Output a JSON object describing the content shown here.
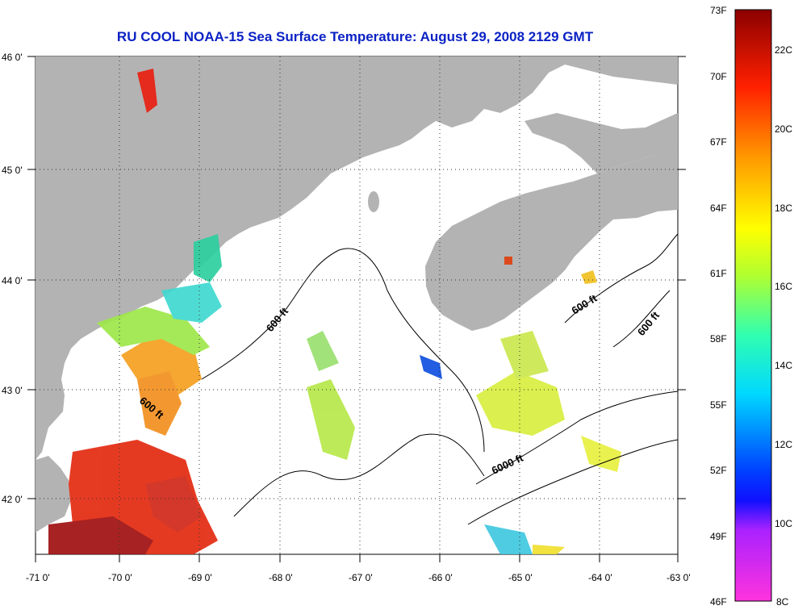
{
  "title": "RU COOL  NOAA-15  Sea Surface Temperature:  August 29, 2008 2129 GMT",
  "map": {
    "lat_labels": [
      "46 0'",
      "45 0'",
      "44 0'",
      "43 0'",
      "42 0'"
    ],
    "lon_labels": [
      "-71 0'",
      "-70 0'",
      "-69 0'",
      "-68 0'",
      "-67 0'",
      "-66 0'",
      "-65 0'",
      "-64 0'",
      "-63 0'"
    ],
    "lat_range": [
      41.5,
      46.0
    ],
    "lon_range": [
      -71.0,
      -63.0
    ],
    "grid": "dotted",
    "land_color": "#b3b3b3",
    "contour_labels": [
      "600 ft",
      "600 ft",
      "600 ft",
      "600 ft",
      "6000 ft"
    ]
  },
  "colorbar": {
    "f_labels": [
      "73F",
      "70F",
      "67F",
      "64F",
      "61F",
      "58F",
      "55F",
      "52F",
      "49F",
      "46F"
    ],
    "c_labels": [
      "22C",
      "20C",
      "18C",
      "16C",
      "14C",
      "12C",
      "10C",
      "8C"
    ],
    "range_f": [
      46,
      73
    ],
    "range_c": [
      8,
      23
    ],
    "colors": [
      "#8b0000",
      "#ff0000",
      "#ff8c00",
      "#ffff00",
      "#7fff7f",
      "#00ffff",
      "#0066ff",
      "#0000ff",
      "#ff00ff"
    ]
  }
}
